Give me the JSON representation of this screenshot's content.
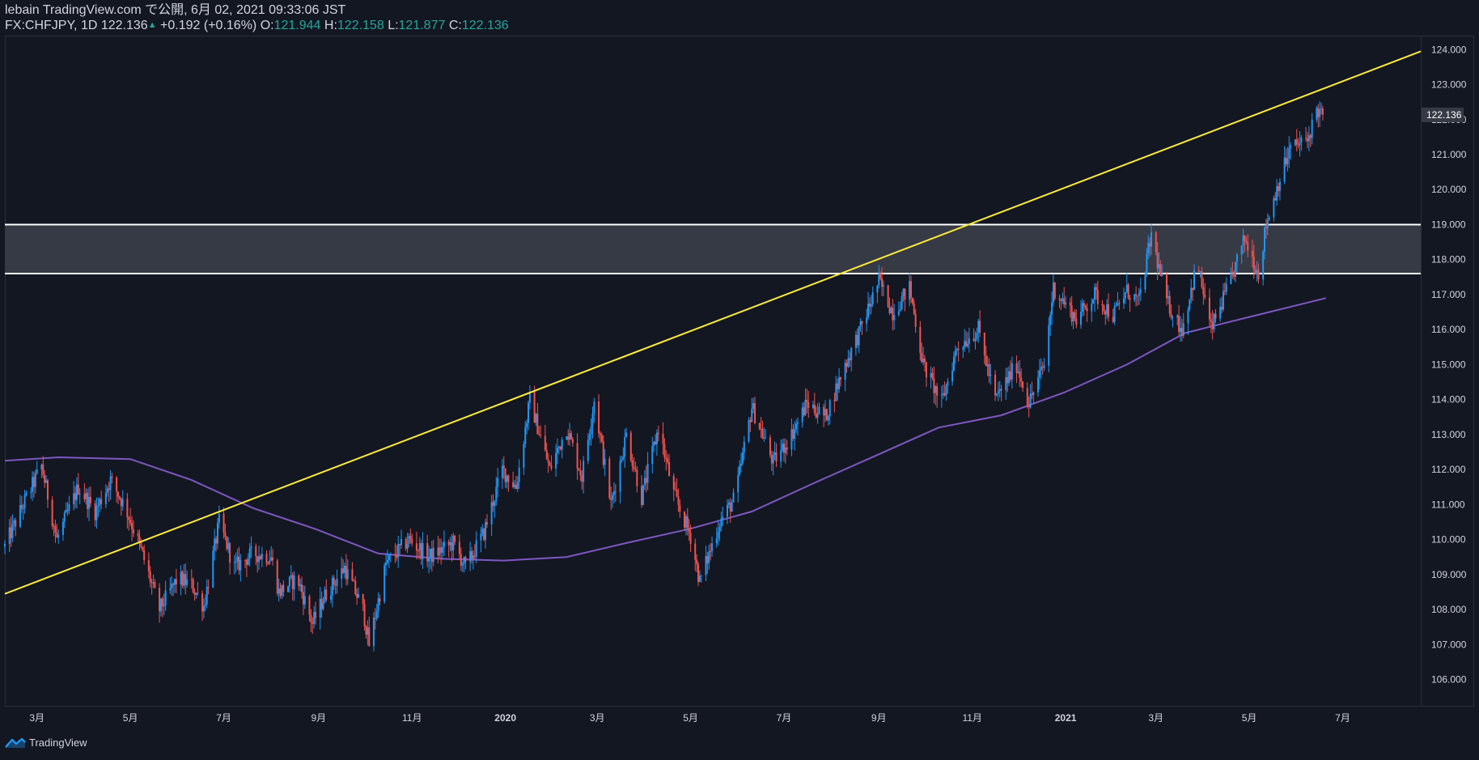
{
  "header": {
    "publisher": "lebain TradingView.com で公開, 6月 02, 2021 09:33:06 JST",
    "symbol": "FX:CHFJPY, 1D",
    "last": "122.136",
    "change": "+0.192 (+0.16%)",
    "open_label": "O:",
    "open": "121.944",
    "high_label": "H:",
    "high": "122.158",
    "low_label": "L:",
    "low": "121.877",
    "close_label": "C:",
    "close": "122.136"
  },
  "footer": {
    "brand": "TradingView"
  },
  "colors": {
    "background": "#131722",
    "up": "#2196f3",
    "down": "#ef5350",
    "trendline": "#ffeb3b",
    "moving_average": "#7e57c2",
    "zone_fill": "#363a45",
    "zone_border": "#ffffff",
    "axis_text": "#d1d4dc"
  },
  "chart_data": {
    "type": "candlestick",
    "price_axis": {
      "ticks": [
        "106.000",
        "107.000",
        "108.000",
        "109.000",
        "110.000",
        "111.000",
        "112.000",
        "113.000",
        "114.000",
        "115.000",
        "116.000",
        "117.000",
        "118.000",
        "119.000",
        "120.000",
        "121.000",
        "122.000",
        "123.000",
        "124.000"
      ],
      "range": [
        105.25,
        124.4
      ]
    },
    "time_axis": {
      "ticks": [
        "3月",
        "5月",
        "7月",
        "9月",
        "11月",
        "2020",
        "3月",
        "5月",
        "7月",
        "9月",
        "11月",
        "2021",
        "3月",
        "5月",
        "7月"
      ],
      "tick_dates": [
        "2019-03-01",
        "2019-05-01",
        "2019-07-01",
        "2019-09-01",
        "2019-11-01",
        "2020-01-01",
        "2020-03-01",
        "2020-05-01",
        "2020-07-01",
        "2020-09-01",
        "2020-11-01",
        "2021-01-01",
        "2021-03-01",
        "2021-05-01",
        "2021-07-01"
      ],
      "bold_ticks": [
        "2020",
        "2021"
      ],
      "range": [
        "2019-02-08",
        "2021-08-21"
      ]
    },
    "last_price_label": "122.136",
    "price_path": [
      [
        "2019-02-08",
        109.8
      ],
      [
        "2019-02-20",
        111.0
      ],
      [
        "2019-03-04",
        112.1
      ],
      [
        "2019-03-14",
        110.0
      ],
      [
        "2019-03-28",
        111.5
      ],
      [
        "2019-04-08",
        110.8
      ],
      [
        "2019-04-18",
        111.7
      ],
      [
        "2019-04-28",
        110.9
      ],
      [
        "2019-05-08",
        109.7
      ],
      [
        "2019-05-20",
        108.0
      ],
      [
        "2019-06-01",
        108.9
      ],
      [
        "2019-06-10",
        108.7
      ],
      [
        "2019-06-18",
        108.1
      ],
      [
        "2019-06-28",
        110.5
      ],
      [
        "2019-07-08",
        109.2
      ],
      [
        "2019-07-20",
        109.6
      ],
      [
        "2019-08-01",
        109.5
      ],
      [
        "2019-08-06",
        108.5
      ],
      [
        "2019-08-18",
        108.9
      ],
      [
        "2019-08-28",
        107.6
      ],
      [
        "2019-09-05",
        108.4
      ],
      [
        "2019-09-18",
        109.2
      ],
      [
        "2019-09-30",
        108.0
      ],
      [
        "2019-10-04",
        107.0
      ],
      [
        "2019-10-15",
        109.3
      ],
      [
        "2019-10-30",
        110.0
      ],
      [
        "2019-11-12",
        109.5
      ],
      [
        "2019-11-28",
        109.9
      ],
      [
        "2019-12-06",
        109.2
      ],
      [
        "2019-12-18",
        110.2
      ],
      [
        "2019-12-30",
        112.0
      ],
      [
        "2020-01-08",
        111.5
      ],
      [
        "2020-01-17",
        114.0
      ],
      [
        "2020-01-30",
        112.0
      ],
      [
        "2020-02-10",
        113.2
      ],
      [
        "2020-02-20",
        111.8
      ],
      [
        "2020-02-28",
        114.0
      ],
      [
        "2020-03-10",
        111.0
      ],
      [
        "2020-03-20",
        113.0
      ],
      [
        "2020-03-30",
        111.2
      ],
      [
        "2020-04-10",
        113.2
      ],
      [
        "2020-04-20",
        111.3
      ],
      [
        "2020-05-01",
        110.1
      ],
      [
        "2020-05-07",
        108.8
      ],
      [
        "2020-05-20",
        110.5
      ],
      [
        "2020-05-30",
        111.2
      ],
      [
        "2020-06-10",
        113.8
      ],
      [
        "2020-06-24",
        112.2
      ],
      [
        "2020-07-06",
        113.0
      ],
      [
        "2020-07-16",
        113.9
      ],
      [
        "2020-07-28",
        113.5
      ],
      [
        "2020-08-10",
        115.0
      ],
      [
        "2020-08-20",
        116.0
      ],
      [
        "2020-09-01",
        117.4
      ],
      [
        "2020-09-10",
        116.5
      ],
      [
        "2020-09-21",
        117.2
      ],
      [
        "2020-09-30",
        115.0
      ],
      [
        "2020-10-12",
        113.9
      ],
      [
        "2020-10-22",
        115.5
      ],
      [
        "2020-11-05",
        116.0
      ],
      [
        "2020-11-16",
        114.0
      ],
      [
        "2020-11-30",
        115.0
      ],
      [
        "2020-12-08",
        113.9
      ],
      [
        "2020-12-18",
        115.0
      ],
      [
        "2020-12-24",
        117.2
      ],
      [
        "2021-01-08",
        116.3
      ],
      [
        "2021-01-20",
        117.0
      ],
      [
        "2021-02-01",
        116.4
      ],
      [
        "2021-02-10",
        117.1
      ],
      [
        "2021-02-18",
        116.8
      ],
      [
        "2021-02-26",
        118.7
      ],
      [
        "2021-03-08",
        116.8
      ],
      [
        "2021-03-18",
        116.0
      ],
      [
        "2021-03-28",
        117.9
      ],
      [
        "2021-04-06",
        116.0
      ],
      [
        "2021-04-18",
        117.3
      ],
      [
        "2021-04-28",
        118.6
      ],
      [
        "2021-05-07",
        117.6
      ],
      [
        "2021-05-12",
        119.0
      ],
      [
        "2021-05-20",
        120.2
      ],
      [
        "2021-05-28",
        121.2
      ],
      [
        "2021-06-08",
        121.4
      ],
      [
        "2021-06-14",
        122.3
      ],
      [
        "2021-06-18",
        122.1
      ]
    ],
    "moving_average": [
      [
        "2019-02-08",
        112.25
      ],
      [
        "2019-03-15",
        112.35
      ],
      [
        "2019-05-01",
        112.3
      ],
      [
        "2019-06-10",
        111.7
      ],
      [
        "2019-07-20",
        110.9
      ],
      [
        "2019-08-30",
        110.3
      ],
      [
        "2019-10-10",
        109.6
      ],
      [
        "2019-11-20",
        109.45
      ],
      [
        "2019-12-31",
        109.4
      ],
      [
        "2020-02-10",
        109.5
      ],
      [
        "2020-03-20",
        109.9
      ],
      [
        "2020-04-30",
        110.3
      ],
      [
        "2020-06-10",
        110.8
      ],
      [
        "2020-07-20",
        111.6
      ],
      [
        "2020-08-30",
        112.4
      ],
      [
        "2020-10-10",
        113.2
      ],
      [
        "2020-11-20",
        113.55
      ],
      [
        "2020-12-31",
        114.2
      ],
      [
        "2021-02-10",
        115.0
      ],
      [
        "2021-03-20",
        115.9
      ],
      [
        "2021-04-30",
        116.35
      ],
      [
        "2021-06-20",
        116.9
      ]
    ],
    "trendline": {
      "from": [
        "2019-02-08",
        108.45
      ],
      "to": [
        "2021-08-21",
        123.95
      ]
    },
    "zone": {
      "upper": 119.0,
      "lower": 117.6,
      "from": "2019-02-08",
      "to": "2021-08-21"
    }
  }
}
